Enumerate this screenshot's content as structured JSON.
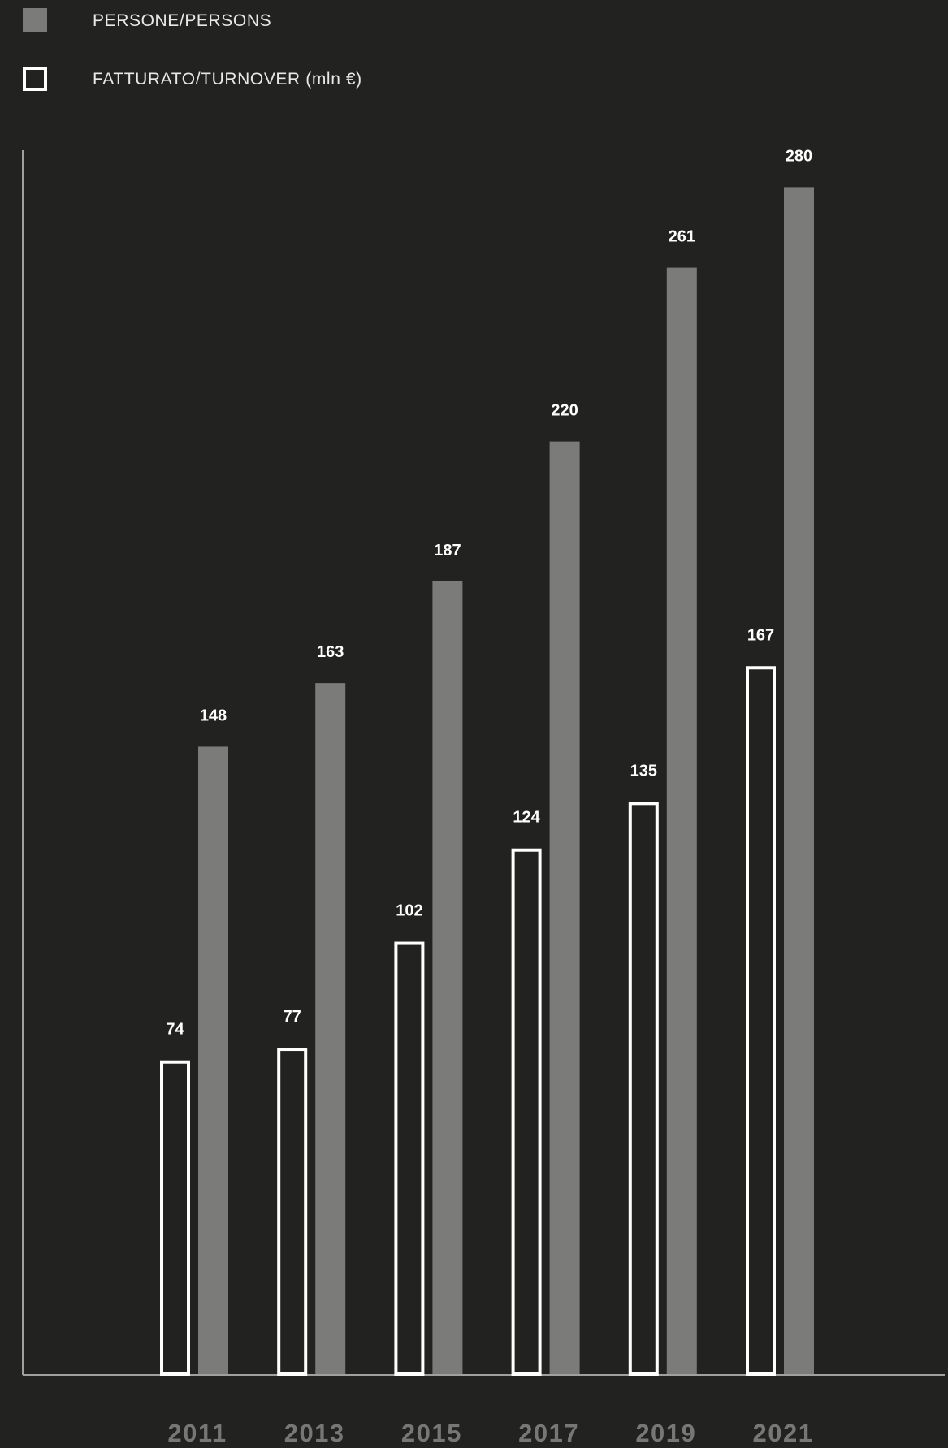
{
  "colors": {
    "background": "#222221",
    "persons_bar": "#7b7b7a",
    "turnover_bar_outline": "#ffffff",
    "turnover_bar_fill": "#222221",
    "value_label": "#ffffff",
    "year_label": "#777776",
    "axis": "#a0a0a0"
  },
  "legend": {
    "persons_label": "PERSONE/PERSONS",
    "turnover_label": "FATTURATO/TURNOVER (mln €)"
  },
  "chart_data": {
    "type": "bar",
    "categories": [
      "2011",
      "2013",
      "2015",
      "2017",
      "2019",
      "2021"
    ],
    "series": [
      {
        "name": "FATTURATO/TURNOVER (mln €)",
        "values": [
          74,
          77,
          102,
          124,
          135,
          167
        ]
      },
      {
        "name": "PERSONE/PERSONS",
        "values": [
          148,
          163,
          187,
          220,
          261,
          280
        ]
      }
    ],
    "title": "",
    "xlabel": "",
    "ylabel": "",
    "ylim": [
      0,
      285
    ],
    "grid": false,
    "legend_position": "top-left",
    "data_labels": true
  }
}
